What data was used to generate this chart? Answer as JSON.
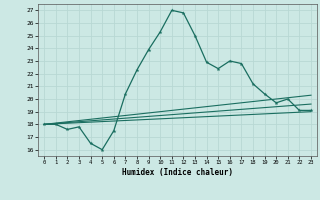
{
  "title": "",
  "xlabel": "Humidex (Indice chaleur)",
  "xlim": [
    -0.5,
    23.5
  ],
  "ylim": [
    15.5,
    27.5
  ],
  "xticks": [
    0,
    1,
    2,
    3,
    4,
    5,
    6,
    7,
    8,
    9,
    10,
    11,
    12,
    13,
    14,
    15,
    16,
    17,
    18,
    19,
    20,
    21,
    22,
    23
  ],
  "yticks": [
    16,
    17,
    18,
    19,
    20,
    21,
    22,
    23,
    24,
    25,
    26,
    27
  ],
  "bg_color": "#cce8e4",
  "grid_color": "#b8d8d4",
  "line_color": "#1a6e60",
  "main_line": {
    "x": [
      0,
      1,
      2,
      3,
      4,
      5,
      6,
      7,
      8,
      9,
      10,
      11,
      12,
      13,
      14,
      15,
      16,
      17,
      18,
      19,
      20,
      21,
      22,
      23
    ],
    "y": [
      18.0,
      18.0,
      17.6,
      17.8,
      16.5,
      16.0,
      17.5,
      20.4,
      22.3,
      23.9,
      25.3,
      27.0,
      26.8,
      25.0,
      22.9,
      22.4,
      23.0,
      22.8,
      21.2,
      20.4,
      19.7,
      20.0,
      19.1,
      19.1
    ]
  },
  "line1": {
    "x": [
      0,
      23
    ],
    "y": [
      18.0,
      19.0
    ]
  },
  "line2": {
    "x": [
      0,
      23
    ],
    "y": [
      18.0,
      19.6
    ]
  },
  "line3": {
    "x": [
      0,
      23
    ],
    "y": [
      18.0,
      20.3
    ]
  }
}
